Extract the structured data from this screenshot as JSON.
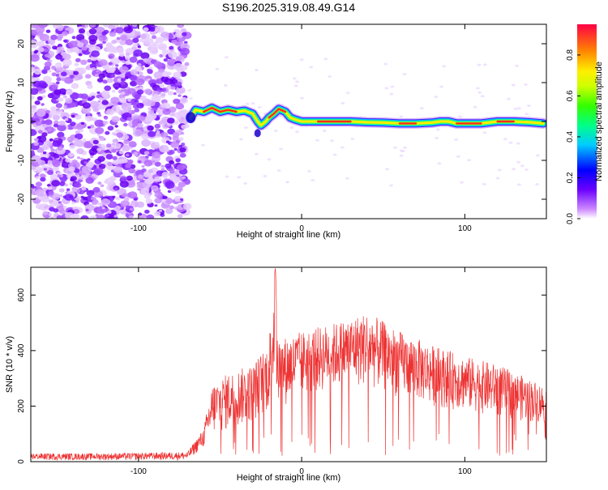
{
  "title": "S196.2025.319.08.49.G14",
  "chart_data": [
    {
      "type": "heatmap",
      "xlabel": "Height of straight line (km)",
      "ylabel": "Frequency (Hz)",
      "xlim": [
        -166,
        150
      ],
      "ylim": [
        -25,
        25
      ],
      "xticks": [
        -100,
        0,
        100
      ],
      "yticks": [
        -20,
        -10,
        0,
        10,
        20
      ],
      "noise_region_x": [
        -166,
        -70
      ],
      "ridge": {
        "x": [
          -68,
          -65,
          -60,
          -55,
          -50,
          -45,
          -40,
          -35,
          -30,
          -27,
          -25,
          -22,
          -20,
          -17,
          -14,
          -10,
          -7,
          -4,
          0,
          10,
          20,
          30,
          40,
          50,
          60,
          70,
          80,
          85,
          90,
          95,
          100,
          110,
          120,
          130,
          140,
          148
        ],
        "freq": [
          1,
          3,
          2.5,
          3.5,
          2.5,
          3,
          2.5,
          2.8,
          2,
          0,
          -1,
          0,
          1,
          2,
          3.2,
          2.5,
          1,
          0.5,
          0,
          0,
          0,
          0,
          -0.2,
          -0.3,
          -0.5,
          -0.5,
          -0.3,
          0,
          0,
          -0.5,
          -0.5,
          -0.5,
          0,
          0,
          -0.2,
          -0.5
        ]
      },
      "colorbar": {
        "label": "Normalized spectral amplitude",
        "ticks": [
          "0.0",
          "0.2",
          "0.4",
          "0.6",
          "0.8"
        ],
        "range": [
          0,
          0.95
        ]
      }
    },
    {
      "type": "line",
      "xlabel": "Height of straight line (km)",
      "ylabel": "SNR (10 * v/v)",
      "xlim": [
        -166,
        150
      ],
      "ylim": [
        0,
        700
      ],
      "xticks": [
        -100,
        0,
        100
      ],
      "yticks": [
        0,
        200,
        400,
        600
      ],
      "color": "#ee3333",
      "envelope": {
        "x": [
          -166,
          -120,
          -70,
          -60,
          -55,
          -45,
          -30,
          -20,
          -18,
          -16,
          -15,
          -10,
          0,
          20,
          40,
          60,
          80,
          100,
          120,
          150
        ],
        "top": [
          30,
          30,
          35,
          120,
          280,
          320,
          350,
          430,
          620,
          700,
          440,
          450,
          470,
          500,
          540,
          470,
          420,
          380,
          350,
          270
        ],
        "low": [
          5,
          5,
          5,
          50,
          90,
          110,
          140,
          180,
          220,
          240,
          200,
          200,
          230,
          260,
          270,
          230,
          200,
          180,
          160,
          130
        ]
      }
    }
  ]
}
